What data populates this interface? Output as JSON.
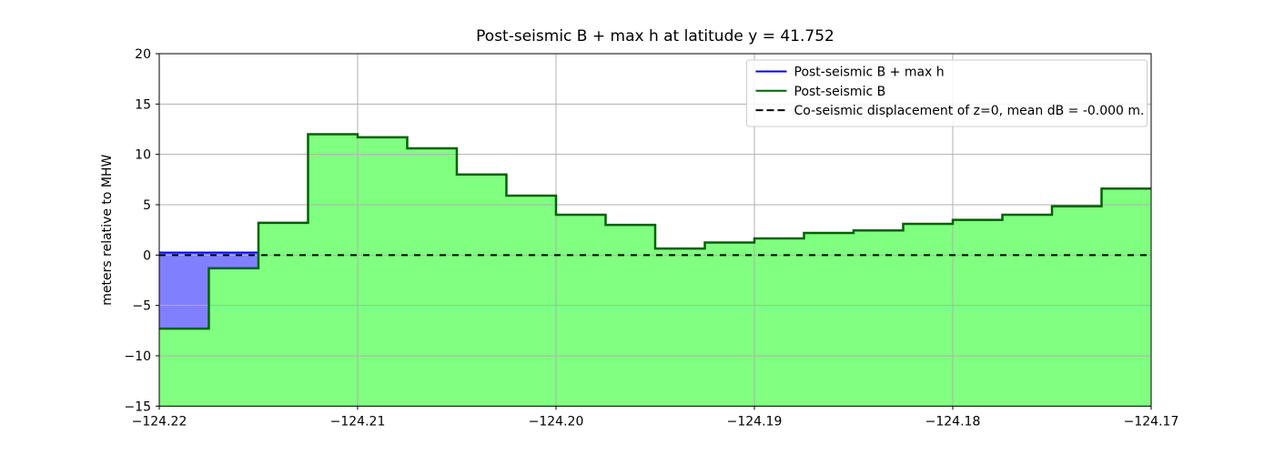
{
  "chart_data": {
    "type": "area",
    "title": "Post-seismic B + max h at latitude y = 41.752",
    "xlabel": "",
    "ylabel": "meters relative to MHW",
    "xlim": [
      -124.22,
      -124.17
    ],
    "ylim": [
      -15,
      20
    ],
    "grid": true,
    "legend_position": "upper right",
    "x_tick_values": [
      -124.22,
      -124.21,
      -124.2,
      -124.19,
      -124.18,
      -124.17
    ],
    "x_tick_labels": [
      "−124.22",
      "−124.21",
      "−124.20",
      "−124.19",
      "−124.18",
      "−124.17"
    ],
    "y_tick_values": [
      -15,
      -10,
      -5,
      0,
      5,
      10,
      15,
      20
    ],
    "y_tick_labels": [
      "−15",
      "−10",
      "−5",
      "0",
      "5",
      "10",
      "15",
      "20"
    ],
    "step_x_start": -124.22,
    "step_width": 0.0025,
    "series": [
      {
        "name": "Post-seismic B + max h",
        "line_color": "#0000ff",
        "fill_color": "#8080ff",
        "values": [
          0.25,
          0.25,
          3.2,
          12.0,
          11.7,
          10.6,
          8.0,
          5.9,
          4.0,
          3.0,
          0.65,
          1.25,
          1.65,
          2.2,
          2.45,
          3.1,
          3.5,
          4.0,
          4.85,
          6.6
        ]
      },
      {
        "name": "Post-seismic B",
        "line_color": "#006400",
        "fill_color": "#80ff80",
        "values": [
          -7.3,
          -1.3,
          3.2,
          12.0,
          11.7,
          10.6,
          8.0,
          5.9,
          4.0,
          3.0,
          0.65,
          1.25,
          1.65,
          2.2,
          2.45,
          3.1,
          3.5,
          4.0,
          4.85,
          6.6
        ]
      }
    ],
    "reference_line": {
      "name": "Co-seismic displacement of z=0, mean dB = -0.000 m.",
      "color": "#000000",
      "style": "dashed",
      "y": 0
    },
    "legend_entries": [
      {
        "label": "Post-seismic B + max h",
        "color": "#0000ff",
        "dashed": false
      },
      {
        "label": "Post-seismic B",
        "color": "#006400",
        "dashed": false
      },
      {
        "label": "Co-seismic displacement of z=0, mean dB = -0.000 m.",
        "color": "#000000",
        "dashed": true
      }
    ],
    "colors": {
      "grid": "#b0b0b0",
      "spine": "#000000",
      "background": "#ffffff",
      "legend_border": "#cccccc"
    }
  }
}
